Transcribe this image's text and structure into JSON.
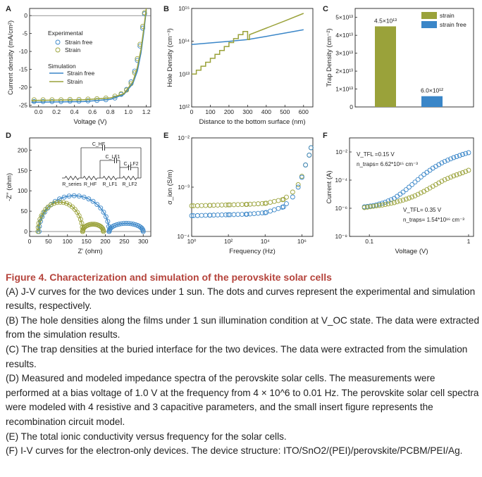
{
  "caption": {
    "title": "Figure 4. Characterization and simulation of the perovskite solar cells",
    "paragraphs": [
      "(A) J-V curves for the two devices under 1 sun. The dots and curves represent the experimental and simulation results, respectively.",
      "(B) The hole densities along the films under 1 sun illumination condition at V_OC state. The data were extracted from the simulation results.",
      "(C) The trap densities at the buried interface for the two devices. The data were extracted from the simulation results.",
      "(D) Measured and modeled impedance spectra of the perovskite solar cells. The measurements were performed at a bias voltage of 1.0 V at the frequency from 4 × 10^6 to 0.01 Hz. The perovskite solar cell spectra were modeled with 4 resistive and 3 capacitive parameters, and the small insert figure represents the recombination circuit model.",
      "(E) The total ionic conductivity versus frequency for the solar cells.",
      "(F) I-V curves for the electron-only devices. The device structure: ITO/SnO2/(PEI)/perovskite/PCBM/PEI/Ag."
    ]
  },
  "colors": {
    "strain_free": "#3a86c8",
    "strain": "#9aa23a",
    "caption_title": "#b5443c"
  },
  "chart_data": [
    {
      "panel": "A",
      "type": "line",
      "xlabel": "Voltage (V)",
      "ylabel": "Current density (mA/cm²)",
      "xlim": [
        -0.1,
        1.25
      ],
      "ylim": [
        -25.5,
        2
      ],
      "xticks": [
        "0.0",
        "0.2",
        "0.4",
        "0.6",
        "0.8",
        "1.0",
        "1.2"
      ],
      "yticks": [
        "0",
        "-5",
        "-10",
        "-15",
        "-20",
        "-25"
      ],
      "legend": {
        "experimental_title": "Experimental",
        "simulation_title": "Simulation",
        "items": [
          "Strain free",
          "Strain"
        ]
      },
      "series": [
        {
          "name": "Strain free",
          "kind": "experimental",
          "x": [
            -0.05,
            0.05,
            0.15,
            0.25,
            0.35,
            0.45,
            0.55,
            0.65,
            0.75,
            0.85,
            0.92,
            0.98,
            1.03,
            1.07,
            1.1,
            1.13,
            1.16,
            1.18
          ],
          "y": [
            -24.0,
            -24.0,
            -24.0,
            -24.0,
            -23.9,
            -23.9,
            -23.8,
            -23.7,
            -23.5,
            -23.0,
            -22.0,
            -20.6,
            -18.5,
            -15.5,
            -12.5,
            -8.5,
            -3.5,
            0.5
          ]
        },
        {
          "name": "Strain",
          "kind": "experimental",
          "x": [
            -0.05,
            0.05,
            0.15,
            0.25,
            0.35,
            0.45,
            0.55,
            0.65,
            0.75,
            0.85,
            0.92,
            0.98,
            1.03,
            1.07,
            1.1,
            1.13,
            1.16,
            1.18
          ],
          "y": [
            -23.5,
            -23.5,
            -23.5,
            -23.5,
            -23.4,
            -23.4,
            -23.3,
            -23.2,
            -23.0,
            -22.5,
            -21.8,
            -20.8,
            -19.0,
            -16.0,
            -12.0,
            -8.0,
            -3.0,
            0.8
          ]
        },
        {
          "name": "Strain free",
          "kind": "simulation",
          "x": [
            -0.08,
            0.2,
            0.5,
            0.8,
            0.95,
            1.05,
            1.1,
            1.14,
            1.17,
            1.2
          ],
          "y": [
            -24.2,
            -24.1,
            -24.0,
            -23.4,
            -22.0,
            -19.0,
            -15.5,
            -10.5,
            -5.0,
            1.5
          ]
        },
        {
          "name": "Strain",
          "kind": "simulation",
          "x": [
            -0.08,
            0.2,
            0.5,
            0.8,
            0.95,
            1.05,
            1.1,
            1.14,
            1.17,
            1.2
          ],
          "y": [
            -23.7,
            -23.6,
            -23.5,
            -23.0,
            -21.8,
            -18.5,
            -14.5,
            -9.5,
            -4.0,
            2.0
          ]
        }
      ]
    },
    {
      "panel": "B",
      "type": "line",
      "xlabel": "Distance to the bottom surface (nm)",
      "ylabel": "Hole Density (cm⁻³)",
      "xlim": [
        0,
        650
      ],
      "ylim_log10": [
        12,
        15
      ],
      "yscale": "log",
      "xticks": [
        "0",
        "100",
        "200",
        "300",
        "400",
        "500",
        "600"
      ],
      "yticks": [
        "10¹²",
        "10¹³",
        "10¹⁴",
        "10¹⁵"
      ],
      "series": [
        {
          "name": "Strain free",
          "x": [
            0,
            100,
            200,
            300,
            400,
            500,
            600
          ],
          "log10_y": [
            13.9,
            13.95,
            14.0,
            14.05,
            14.15,
            14.25,
            14.35
          ]
        },
        {
          "name": "Strain",
          "x": [
            0,
            25,
            25,
            50,
            50,
            75,
            75,
            100,
            100,
            125,
            125,
            150,
            150,
            175,
            175,
            200,
            200,
            225,
            225,
            250,
            250,
            275,
            275,
            300,
            300,
            310,
            310,
            400,
            500,
            600
          ],
          "log10_y": [
            13.0,
            13.0,
            13.12,
            13.12,
            13.24,
            13.24,
            13.36,
            13.36,
            13.48,
            13.48,
            13.6,
            13.6,
            13.72,
            13.72,
            13.84,
            13.84,
            13.96,
            13.96,
            14.08,
            14.08,
            14.2,
            14.2,
            14.3,
            14.3,
            14.05,
            14.05,
            14.2,
            14.4,
            14.62,
            14.85
          ]
        }
      ]
    },
    {
      "panel": "C",
      "type": "bar",
      "ylabel": "Trap Density (cm⁻²)",
      "ylim": [
        0,
        55000000000000.0
      ],
      "yticks": [
        "0",
        "1×10¹³",
        "2×10¹³",
        "3×10¹³",
        "4×10¹³",
        "5×10¹³"
      ],
      "categories": [
        "strain",
        "strain free"
      ],
      "values": [
        45000000000000.0,
        6000000000000.0
      ],
      "data_labels": [
        "4.5×10¹³",
        "6.0×10¹²"
      ],
      "legend": [
        "strain",
        "strain free"
      ]
    },
    {
      "panel": "D",
      "type": "scatter",
      "xlabel": "Z' (ohm)",
      "ylabel": "-Z'' (ohm)",
      "xlim": [
        0,
        320
      ],
      "ylim": [
        -12,
        230
      ],
      "xticks": [
        "0",
        "50",
        "100",
        "150",
        "200",
        "250",
        "300"
      ],
      "yticks": [
        "0",
        "50",
        "100",
        "150",
        "200"
      ],
      "circuit_labels": [
        "C_HF",
        "C_LF1",
        "C_LF2",
        "R_series",
        "R_HF",
        "R_LF1",
        "R_LF2"
      ],
      "series": [
        {
          "name": "Strain free",
          "arcs": [
            [
              25,
              210,
              88
            ],
            [
              210,
              300,
              20
            ]
          ]
        },
        {
          "name": "Strain",
          "arcs": [
            [
              22,
              140,
              72
            ],
            [
              140,
              195,
              18
            ]
          ]
        }
      ]
    },
    {
      "panel": "E",
      "type": "scatter",
      "xlabel": "Frequency (Hz)",
      "ylabel": "σ_ion (S/m)",
      "xscale": "log",
      "yscale": "log",
      "xlim_log10": [
        0,
        6.6
      ],
      "ylim_log10": [
        -4,
        -2
      ],
      "xticks": [
        "10⁰",
        "10²",
        "10⁴",
        "10⁶"
      ],
      "yticks": [
        "10⁻⁴",
        "10⁻³",
        "10⁻²"
      ],
      "series": [
        {
          "name": "Strain",
          "log10_x": [
            0,
            1,
            2,
            3,
            4,
            5,
            5.5,
            5.8,
            6,
            6.2,
            6.4,
            6.5
          ],
          "log10_y": [
            -3.38,
            -3.37,
            -3.36,
            -3.35,
            -3.33,
            -3.25,
            -3.1,
            -2.95,
            -2.78,
            -2.55,
            -2.35,
            -2.2
          ]
        },
        {
          "name": "Strain free",
          "log10_x": [
            0,
            1,
            2,
            3,
            4,
            5,
            5.5,
            5.8,
            6,
            6.2,
            6.4,
            6.5
          ],
          "log10_y": [
            -3.58,
            -3.57,
            -3.56,
            -3.55,
            -3.52,
            -3.4,
            -3.2,
            -3.0,
            -2.8,
            -2.55,
            -2.35,
            -2.2
          ]
        }
      ]
    },
    {
      "panel": "F",
      "type": "scatter",
      "xlabel": "Voltage (V)",
      "ylabel": "Current (A)",
      "xscale": "log",
      "yscale": "log",
      "xlim_log10": [
        -1.2,
        0.05
      ],
      "ylim_log10": [
        -8,
        -1
      ],
      "xticks": [
        "0.1",
        "1"
      ],
      "yticks": [
        "10⁻⁸",
        "10⁻⁶",
        "10⁻⁴",
        "10⁻²"
      ],
      "annotations": [
        "V_TFL =0.15 V",
        "n_traps= 6.62*10¹⁵ cm⁻³",
        "V_TFL= 0.35 V",
        "n_traps= 1.54*10¹⁶ cm⁻³"
      ],
      "series": [
        {
          "name": "Strain free",
          "log10_x": [
            -1.05,
            -0.95,
            -0.85,
            -0.75,
            -0.65,
            -0.55,
            -0.45,
            -0.35,
            -0.25,
            -0.15,
            -0.05,
            0
          ],
          "log10_y": [
            -5.9,
            -5.8,
            -5.6,
            -5.3,
            -4.8,
            -4.2,
            -3.6,
            -3.1,
            -2.7,
            -2.4,
            -2.15,
            -2.05
          ]
        },
        {
          "name": "Strain",
          "log10_x": [
            -1.05,
            -0.95,
            -0.85,
            -0.75,
            -0.65,
            -0.55,
            -0.45,
            -0.35,
            -0.25,
            -0.15,
            -0.05,
            0
          ],
          "log10_y": [
            -5.95,
            -5.85,
            -5.75,
            -5.6,
            -5.4,
            -5.15,
            -4.8,
            -4.4,
            -4.0,
            -3.7,
            -3.45,
            -3.3
          ]
        }
      ]
    }
  ]
}
